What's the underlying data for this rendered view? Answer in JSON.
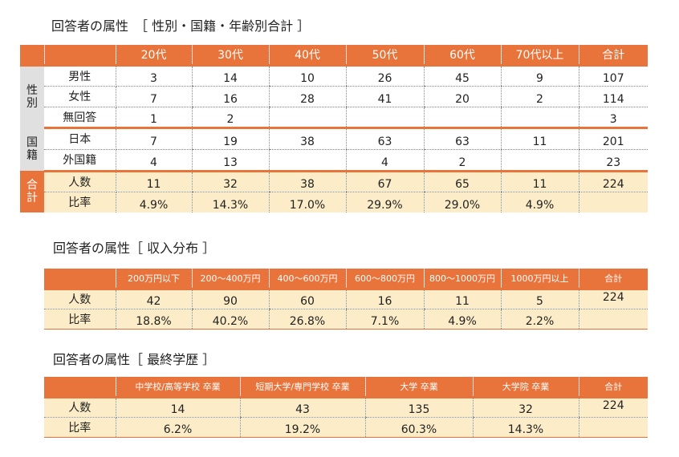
{
  "section1": {
    "title": "回答者の属性　［ 性別・国籍・年齢別合計 ］",
    "columns": [
      "20代",
      "30代",
      "40代",
      "50代",
      "60代",
      "70代以上",
      "合計"
    ],
    "groups": {
      "gender": "性\n別",
      "nationality": "国\n籍",
      "total": "合\n計"
    },
    "rows": {
      "male": {
        "label": "男性",
        "values": [
          "3",
          "14",
          "10",
          "26",
          "45",
          "9",
          "107"
        ]
      },
      "female": {
        "label": "女性",
        "values": [
          "7",
          "16",
          "28",
          "41",
          "20",
          "2",
          "114"
        ]
      },
      "noanswer": {
        "label": "無回答",
        "values": [
          "1",
          "2",
          "",
          "",
          "",
          "",
          "3"
        ]
      },
      "japan": {
        "label": "日本",
        "values": [
          "7",
          "19",
          "38",
          "63",
          "63",
          "11",
          "201"
        ]
      },
      "foreign": {
        "label": "外国籍",
        "values": [
          "4",
          "13",
          "",
          "4",
          "2",
          "",
          "23"
        ]
      },
      "count": {
        "label": "人数",
        "values": [
          "11",
          "32",
          "38",
          "67",
          "65",
          "11",
          "224"
        ]
      },
      "ratio": {
        "label": "比率",
        "values": [
          "4.9%",
          "14.3%",
          "17.0%",
          "29.9%",
          "29.0%",
          "4.9%",
          ""
        ]
      }
    }
  },
  "section2": {
    "title": "回答者の属性［ 収入分布 ］",
    "columns": [
      "200万円以下",
      "200～400万円",
      "400～600万円",
      "600～800万円",
      "800～1000万円",
      "1000万円以上",
      "合計"
    ],
    "rows": {
      "count": {
        "label": "人数",
        "values": [
          "42",
          "90",
          "60",
          "16",
          "11",
          "5",
          "224"
        ]
      },
      "ratio": {
        "label": "比率",
        "values": [
          "18.8%",
          "40.2%",
          "26.8%",
          "7.1%",
          "4.9%",
          "2.2%",
          ""
        ]
      }
    }
  },
  "section3": {
    "title": "回答者の属性［ 最終学歴 ］",
    "columns": [
      "中学校/高等学校 卒業",
      "短期大学/専門学校 卒業",
      "大学 卒業",
      "大学院 卒業",
      "合計"
    ],
    "rows": {
      "count": {
        "label": "人数",
        "values": [
          "14",
          "43",
          "135",
          "32",
          "224"
        ]
      },
      "ratio": {
        "label": "比率",
        "values": [
          "6.2%",
          "19.2%",
          "60.3%",
          "14.3%",
          ""
        ]
      }
    }
  },
  "colors": {
    "accent": "#E8743B",
    "total_bg": "#FCEDC8",
    "category_bg": "#E0E0E0"
  }
}
